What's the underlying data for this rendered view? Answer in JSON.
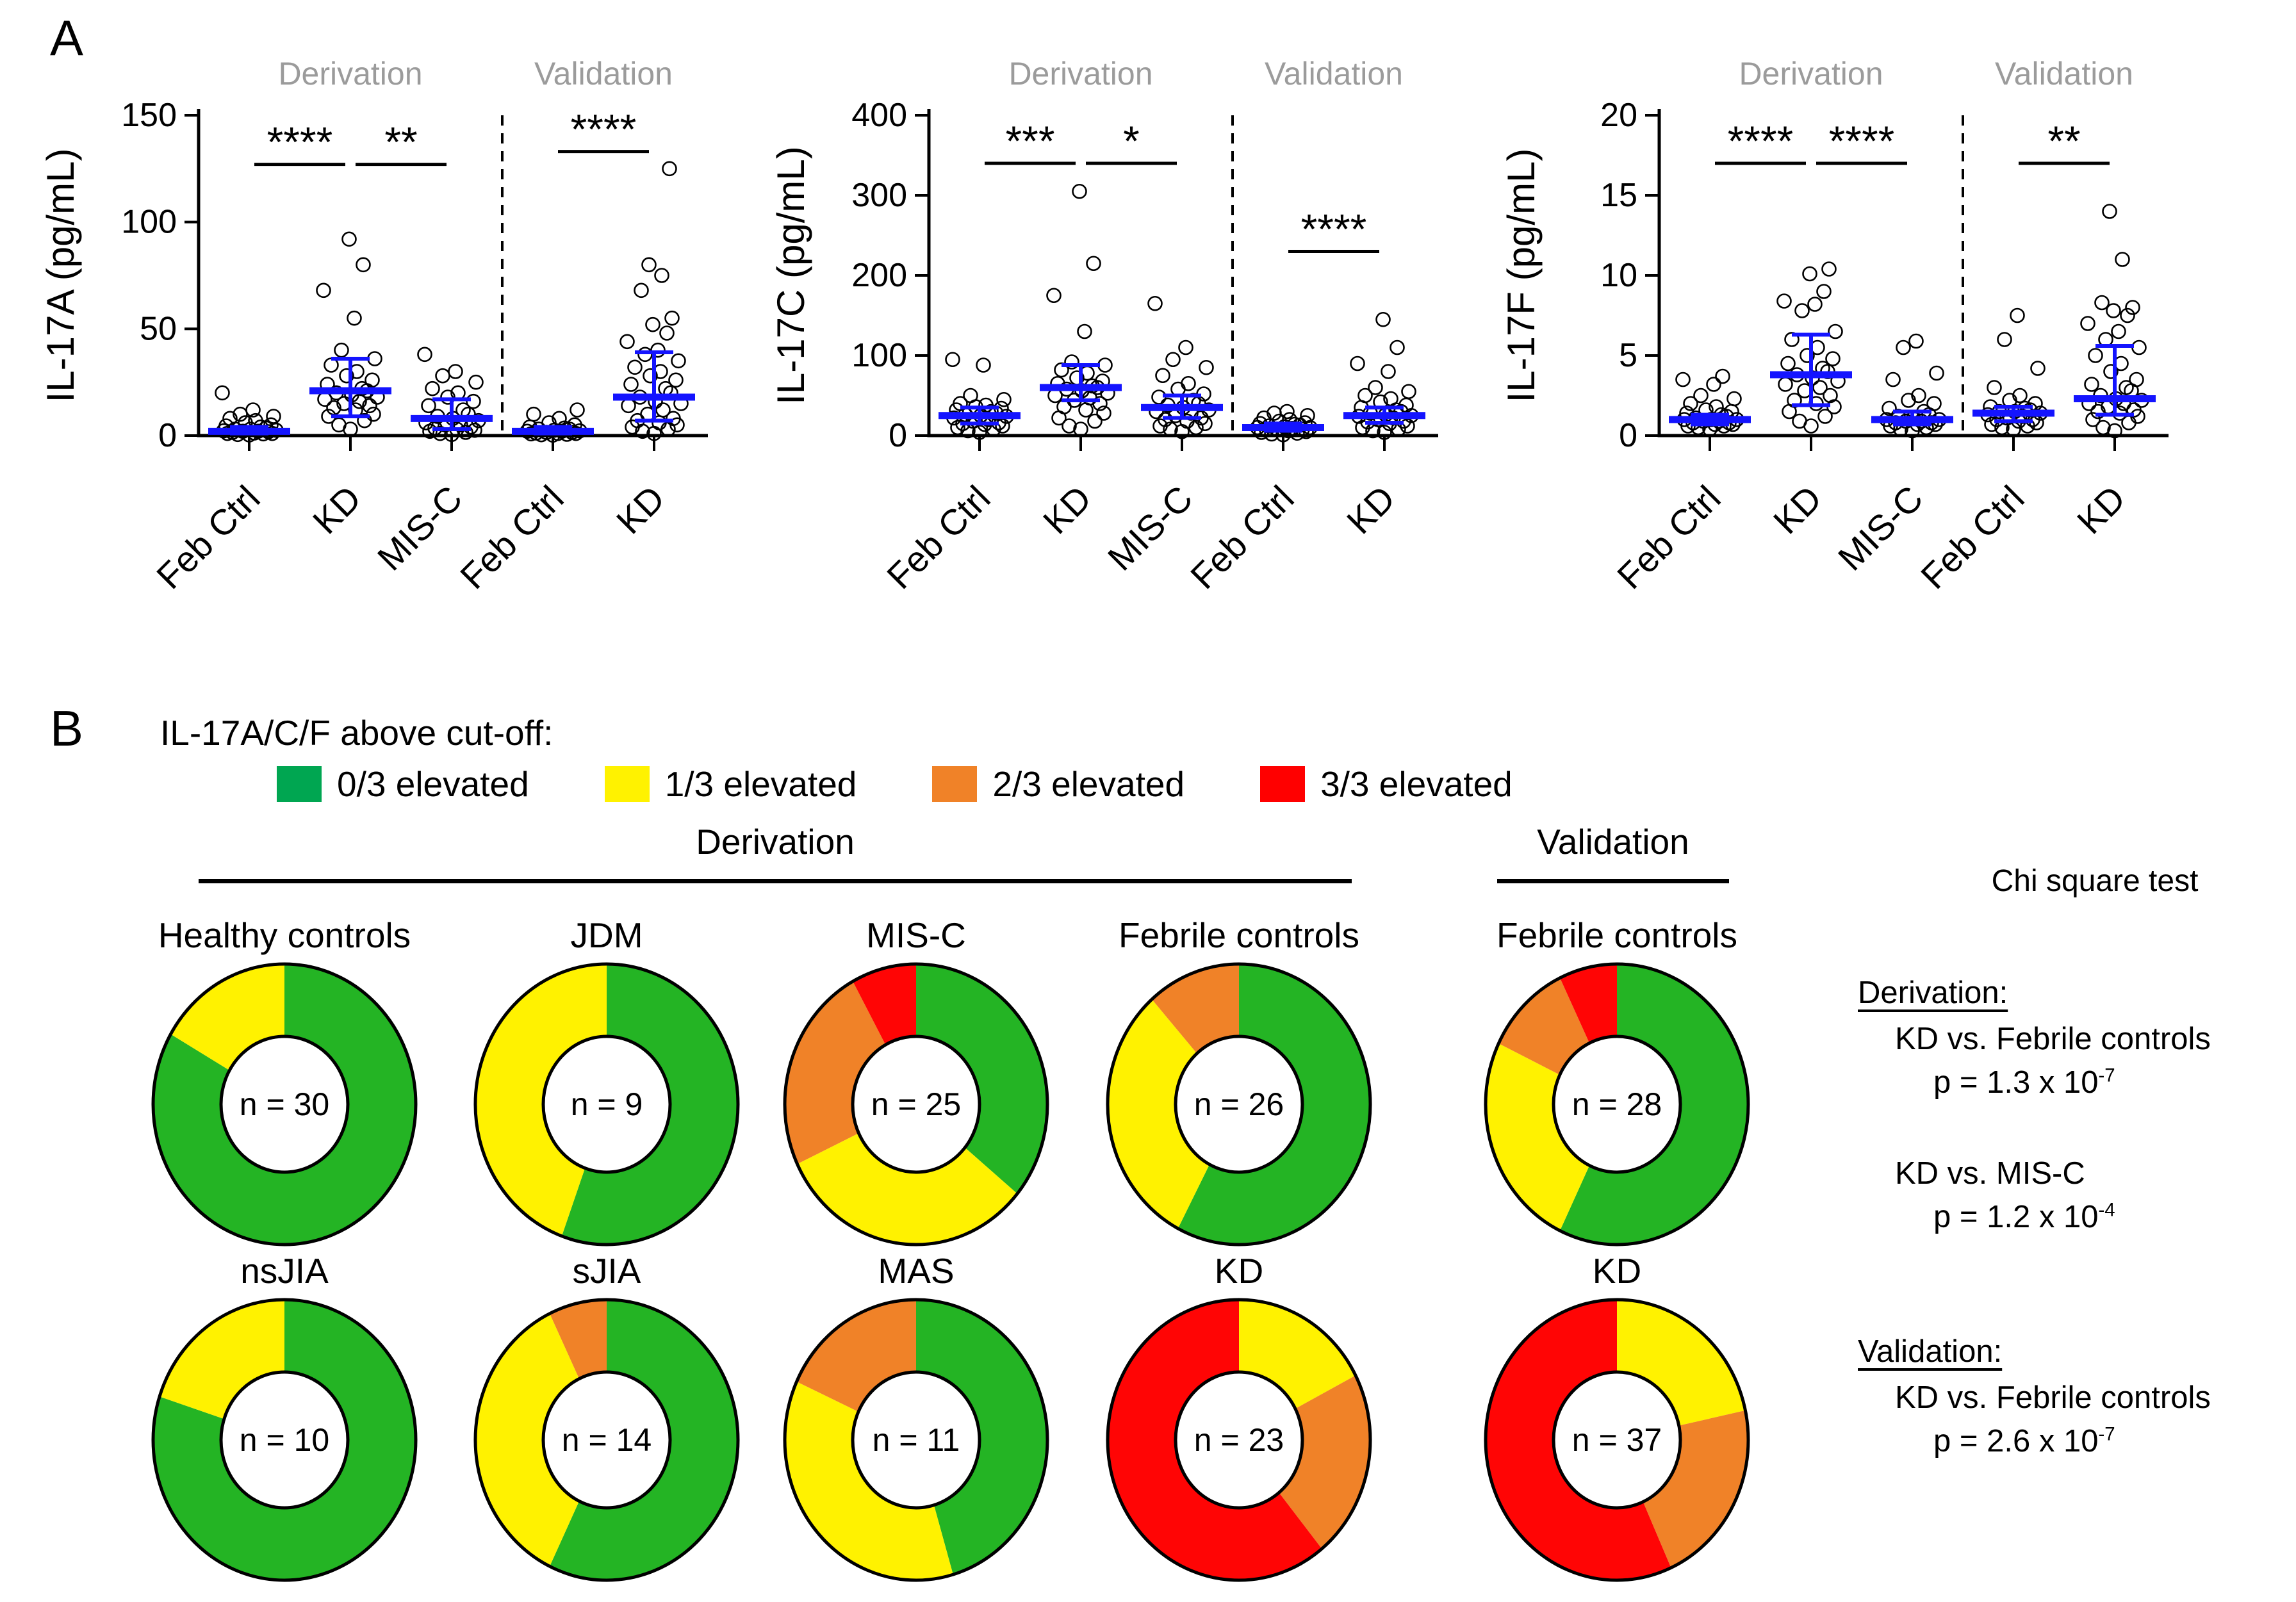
{
  "panel_a": {
    "label": "A"
  },
  "panel_b": {
    "label": "B",
    "cutoff_title": "IL-17A/C/F above cut-off:",
    "legend": [
      {
        "label": "0/3 elevated",
        "color": "#00A651"
      },
      {
        "label": "1/3 elevated",
        "color": "#FFF200"
      },
      {
        "label": "2/3 elevated",
        "color": "#F08228"
      },
      {
        "label": "3/3 elevated",
        "color": "#FF0000"
      }
    ],
    "derivation_header": "Derivation",
    "validation_header": "Validation",
    "stats": {
      "title": "Chi square test",
      "derivation_heading": "Derivation:",
      "derivation_comparisons": [
        {
          "name": "KD vs. Febrile controls",
          "p_base": "p = 1.3 x 10",
          "p_exp": "-7"
        },
        {
          "name": "KD vs. MIS-C",
          "p_base": "p = 1.2 x 10",
          "p_exp": "-4"
        }
      ],
      "validation_heading": "Validation:",
      "validation_comparisons": [
        {
          "name": "KD vs. Febrile controls",
          "p_base": "p = 2.6 x 10",
          "p_exp": "-7"
        }
      ]
    }
  },
  "chart_data": {
    "accent_blue": "#1414FF",
    "section_label_color": "#9B9B9B",
    "scatter_plots": [
      {
        "type": "scatter",
        "ylabel": "IL-17A (pg/mL)",
        "ylim": [
          0,
          150
        ],
        "yticks": [
          0,
          50,
          100,
          150
        ],
        "sections": [
          {
            "label": "Derivation",
            "span": [
              0,
              2
            ]
          },
          {
            "label": "Validation",
            "span": [
              3,
              4
            ]
          }
        ],
        "groups": [
          {
            "label": "Feb Ctrl",
            "median": 2,
            "iqr": [
              1,
              4
            ],
            "values": [
              0.3,
              0.5,
              0.8,
              1,
              1,
              1.2,
              1.5,
              1.8,
              2,
              2,
              2.2,
              2.5,
              3,
              3,
              3.5,
              4,
              4.5,
              5,
              6,
              7,
              8,
              9,
              10,
              12,
              20
            ]
          },
          {
            "label": "KD",
            "median": 21,
            "iqr": [
              9,
              36
            ],
            "values": [
              3,
              5,
              7,
              9,
              10,
              12,
              13,
              14,
              15,
              16,
              17,
              18,
              19,
              20,
              21,
              22,
              24,
              26,
              28,
              30,
              33,
              36,
              40,
              55,
              68,
              80,
              92
            ]
          },
          {
            "label": "MIS-C",
            "median": 8,
            "iqr": [
              3,
              17
            ],
            "values": [
              0.5,
              1,
              1.5,
              2,
              2.5,
              3,
              3.5,
              4,
              5,
              5,
              6,
              7,
              8,
              9,
              10,
              12,
              14,
              16,
              18,
              20,
              22,
              25,
              28,
              30,
              38
            ]
          },
          {
            "label": "Feb Ctrl",
            "median": 2,
            "iqr": [
              1,
              4
            ],
            "values": [
              0.2,
              0.4,
              0.6,
              0.8,
              1,
              1,
              1.2,
              1.5,
              1.5,
              2,
              2,
              2.2,
              2.5,
              3,
              3,
              3.5,
              4,
              5,
              6,
              8,
              10,
              12
            ]
          },
          {
            "label": "KD",
            "median": 18,
            "iqr": [
              7,
              39
            ],
            "values": [
              1,
              2,
              3,
              4,
              5,
              6,
              7,
              8,
              10,
              12,
              14,
              15,
              16,
              18,
              20,
              22,
              24,
              26,
              28,
              30,
              32,
              35,
              38,
              40,
              44,
              48,
              52,
              55,
              68,
              75,
              80,
              125
            ]
          }
        ],
        "significance": [
          {
            "between": [
              0,
              1
            ],
            "stars": "****",
            "y": 127
          },
          {
            "between": [
              1,
              2
            ],
            "stars": "**",
            "y": 127
          },
          {
            "between": [
              3,
              4
            ],
            "stars": "****",
            "y": 133
          }
        ]
      },
      {
        "type": "scatter",
        "ylabel": "IL-17C (pg/mL)",
        "ylim": [
          0,
          400
        ],
        "yticks": [
          0,
          100,
          200,
          300,
          400
        ],
        "sections": [
          {
            "label": "Derivation",
            "span": [
              0,
              2
            ]
          },
          {
            "label": "Validation",
            "span": [
              3,
              4
            ]
          }
        ],
        "groups": [
          {
            "label": "Feb Ctrl",
            "median": 25,
            "iqr": [
              15,
              35
            ],
            "values": [
              4,
              6,
              8,
              10,
              12,
              14,
              15,
              16,
              18,
              20,
              22,
              24,
              25,
              26,
              28,
              30,
              32,
              34,
              36,
              38,
              40,
              45,
              50,
              88,
              95
            ]
          },
          {
            "label": "KD",
            "median": 60,
            "iqr": [
              44,
              88
            ],
            "values": [
              8,
              12,
              18,
              22,
              28,
              32,
              36,
              40,
              44,
              47,
              50,
              53,
              56,
              58,
              60,
              62,
              65,
              68,
              72,
              78,
              82,
              88,
              92,
              130,
              175,
              215,
              305
            ]
          },
          {
            "label": "MIS-C",
            "median": 35,
            "iqr": [
              22,
              50
            ],
            "values": [
              5,
              8,
              10,
              12,
              15,
              18,
              20,
              22,
              25,
              28,
              30,
              32,
              35,
              38,
              40,
              44,
              48,
              52,
              58,
              65,
              75,
              85,
              95,
              110,
              165
            ]
          },
          {
            "label": "Feb Ctrl",
            "median": 10,
            "iqr": [
              6,
              15
            ],
            "values": [
              1,
              2,
              3,
              4,
              5,
              6,
              7,
              8,
              8,
              9,
              10,
              10,
              11,
              12,
              13,
              14,
              15,
              16,
              18,
              20,
              22,
              25,
              28,
              30
            ]
          },
          {
            "label": "KD",
            "median": 25,
            "iqr": [
              16,
              35
            ],
            "values": [
              4,
              6,
              8,
              10,
              12,
              15,
              17,
              18,
              20,
              22,
              24,
              25,
              26,
              28,
              30,
              32,
              35,
              38,
              42,
              46,
              50,
              55,
              60,
              80,
              90,
              110,
              145
            ]
          }
        ],
        "significance": [
          {
            "between": [
              0,
              1
            ],
            "stars": "***",
            "y": 340
          },
          {
            "between": [
              1,
              2
            ],
            "stars": "*",
            "y": 340
          },
          {
            "between": [
              3,
              4
            ],
            "stars": "****",
            "y": 230
          }
        ]
      },
      {
        "type": "scatter",
        "ylabel": "IL-17F (pg/mL)",
        "ylim": [
          0,
          20
        ],
        "yticks": [
          0,
          5,
          10,
          15,
          20
        ],
        "sections": [
          {
            "label": "Derivation",
            "span": [
              0,
              2
            ]
          },
          {
            "label": "Validation",
            "span": [
              3,
              4
            ]
          }
        ],
        "groups": [
          {
            "label": "Feb Ctrl",
            "median": 1.0,
            "iqr": [
              0.7,
              1.3
            ],
            "values": [
              0.4,
              0.5,
              0.6,
              0.6,
              0.7,
              0.7,
              0.8,
              0.8,
              0.9,
              0.9,
              1,
              1,
              1,
              1.1,
              1.2,
              1.3,
              1.4,
              1.5,
              1.6,
              1.8,
              2,
              2.3,
              2.5,
              3.2,
              3.5,
              3.7
            ]
          },
          {
            "label": "KD",
            "median": 3.8,
            "iqr": [
              1.9,
              6.3
            ],
            "values": [
              0.6,
              0.9,
              1.2,
              1.5,
              1.8,
              2,
              2.2,
              2.5,
              2.8,
              3,
              3.2,
              3.4,
              3.6,
              3.8,
              4,
              4.2,
              4.5,
              4.8,
              5,
              5.5,
              6,
              6.5,
              7.8,
              8.2,
              8.4,
              9,
              10.1,
              10.4
            ]
          },
          {
            "label": "MIS-C",
            "median": 1.0,
            "iqr": [
              0.7,
              1.5
            ],
            "values": [
              0.3,
              0.4,
              0.5,
              0.6,
              0.7,
              0.7,
              0.8,
              0.8,
              0.9,
              0.9,
              1,
              1,
              1.1,
              1.2,
              1.3,
              1.5,
              1.7,
              2,
              2.2,
              2.5,
              3.5,
              3.9,
              5.5,
              5.9
            ]
          },
          {
            "label": "Feb Ctrl",
            "median": 1.4,
            "iqr": [
              0.9,
              1.8
            ],
            "values": [
              0.4,
              0.5,
              0.6,
              0.7,
              0.8,
              0.9,
              1,
              1,
              1.1,
              1.2,
              1.3,
              1.4,
              1.5,
              1.5,
              1.6,
              1.7,
              1.8,
              2,
              2.2,
              2.5,
              3,
              4.2,
              6,
              7.5
            ]
          },
          {
            "label": "KD",
            "median": 2.3,
            "iqr": [
              1.3,
              5.6
            ],
            "values": [
              0.3,
              0.5,
              0.8,
              1,
              1.2,
              1.4,
              1.5,
              1.6,
              1.8,
              2,
              2,
              2.2,
              2.3,
              2.5,
              2.8,
              3,
              3.2,
              3.5,
              4,
              4.5,
              5,
              5.5,
              6,
              6.5,
              7,
              7.5,
              7.8,
              8,
              8.3,
              11,
              14
            ]
          }
        ],
        "significance": [
          {
            "between": [
              0,
              1
            ],
            "stars": "****",
            "y": 17
          },
          {
            "between": [
              1,
              2
            ],
            "stars": "****",
            "y": 17
          },
          {
            "between": [
              3,
              4
            ],
            "stars": "**",
            "y": 17
          }
        ]
      }
    ],
    "donut_categories": [
      "0/3 elevated",
      "1/3 elevated",
      "2/3 elevated",
      "3/3 elevated"
    ],
    "donut_colors": [
      "#24B424",
      "#FFF200",
      "#F08228",
      "#FF0505"
    ],
    "donut_rows": [
      [
        {
          "label": "Healthy controls",
          "n": 30,
          "n_label": "n = 30",
          "counts": [
            25,
            5,
            0,
            0
          ]
        },
        {
          "label": "JDM",
          "n": 9,
          "n_label": "n = 9",
          "counts": [
            5,
            4,
            0,
            0
          ]
        },
        {
          "label": "MIS-C",
          "n": 25,
          "n_label": "n = 25",
          "counts": [
            9,
            8,
            6,
            2
          ]
        },
        {
          "label": "Febrile controls",
          "n": 26,
          "n_label": "n = 26",
          "counts": [
            15,
            8,
            3,
            0
          ]
        },
        {
          "label": "Febrile controls",
          "n": 28,
          "n_label": "n = 28",
          "counts": [
            16,
            7,
            3,
            2
          ]
        }
      ],
      [
        {
          "label": "nsJIA",
          "n": 10,
          "n_label": "n = 10",
          "counts": [
            8,
            2,
            0,
            0
          ]
        },
        {
          "label": "sJIA",
          "n": 14,
          "n_label": "n = 14",
          "counts": [
            8,
            5,
            1,
            0
          ]
        },
        {
          "label": "MAS",
          "n": 11,
          "n_label": "n = 11",
          "counts": [
            5,
            4,
            2,
            0
          ]
        },
        {
          "label": "KD",
          "n": 23,
          "n_label": "n = 23",
          "counts": [
            0,
            4,
            5,
            14
          ]
        },
        {
          "label": "KD",
          "n": 37,
          "n_label": "n = 37",
          "counts": [
            0,
            8,
            8,
            21
          ]
        }
      ]
    ]
  }
}
